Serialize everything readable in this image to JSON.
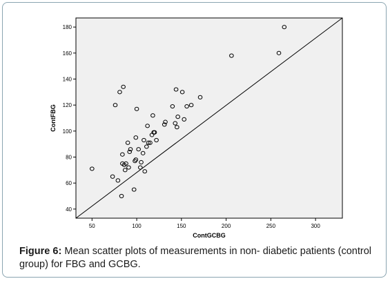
{
  "caption": {
    "label": "Figure 6:",
    "text": " Mean scatter plots of measurements in non- diabetic patients (control group) for FBG and GCBG."
  },
  "chart_data": {
    "type": "scatter",
    "xlabel": "ContGCBG",
    "ylabel": "ContFBG",
    "xlim": [
      32,
      330
    ],
    "ylim": [
      33,
      187
    ],
    "xticks": [
      50,
      100,
      150,
      200,
      250,
      300
    ],
    "yticks": [
      40,
      60,
      80,
      100,
      120,
      140,
      160,
      180
    ],
    "grid": false,
    "reference_line": {
      "from": [
        32,
        33
      ],
      "to": [
        330,
        187
      ]
    },
    "points": [
      [
        50,
        71
      ],
      [
        73,
        65
      ],
      [
        76,
        120
      ],
      [
        79,
        62
      ],
      [
        81,
        130
      ],
      [
        83,
        50
      ],
      [
        84,
        75
      ],
      [
        84,
        82
      ],
      [
        85,
        134
      ],
      [
        86,
        74
      ],
      [
        87,
        70
      ],
      [
        88,
        75
      ],
      [
        90,
        91
      ],
      [
        91,
        72
      ],
      [
        92,
        84
      ],
      [
        93,
        86
      ],
      [
        97,
        55
      ],
      [
        98,
        77
      ],
      [
        99,
        95
      ],
      [
        99,
        78
      ],
      [
        100,
        117
      ],
      [
        102,
        86
      ],
      [
        104,
        72
      ],
      [
        105,
        76
      ],
      [
        107,
        83
      ],
      [
        108,
        93
      ],
      [
        109,
        69
      ],
      [
        111,
        88
      ],
      [
        112,
        104
      ],
      [
        113,
        91
      ],
      [
        115,
        91
      ],
      [
        117,
        97
      ],
      [
        118,
        112
      ],
      [
        119,
        99
      ],
      [
        120,
        99
      ],
      [
        122,
        93
      ],
      [
        131,
        105
      ],
      [
        132,
        107
      ],
      [
        140,
        119
      ],
      [
        143,
        106
      ],
      [
        144,
        132
      ],
      [
        145,
        103
      ],
      [
        146,
        111
      ],
      [
        151,
        130
      ],
      [
        153,
        109
      ],
      [
        156,
        119
      ],
      [
        161,
        120
      ],
      [
        171,
        126
      ],
      [
        206,
        158
      ],
      [
        259,
        160
      ],
      [
        265,
        180
      ]
    ]
  }
}
